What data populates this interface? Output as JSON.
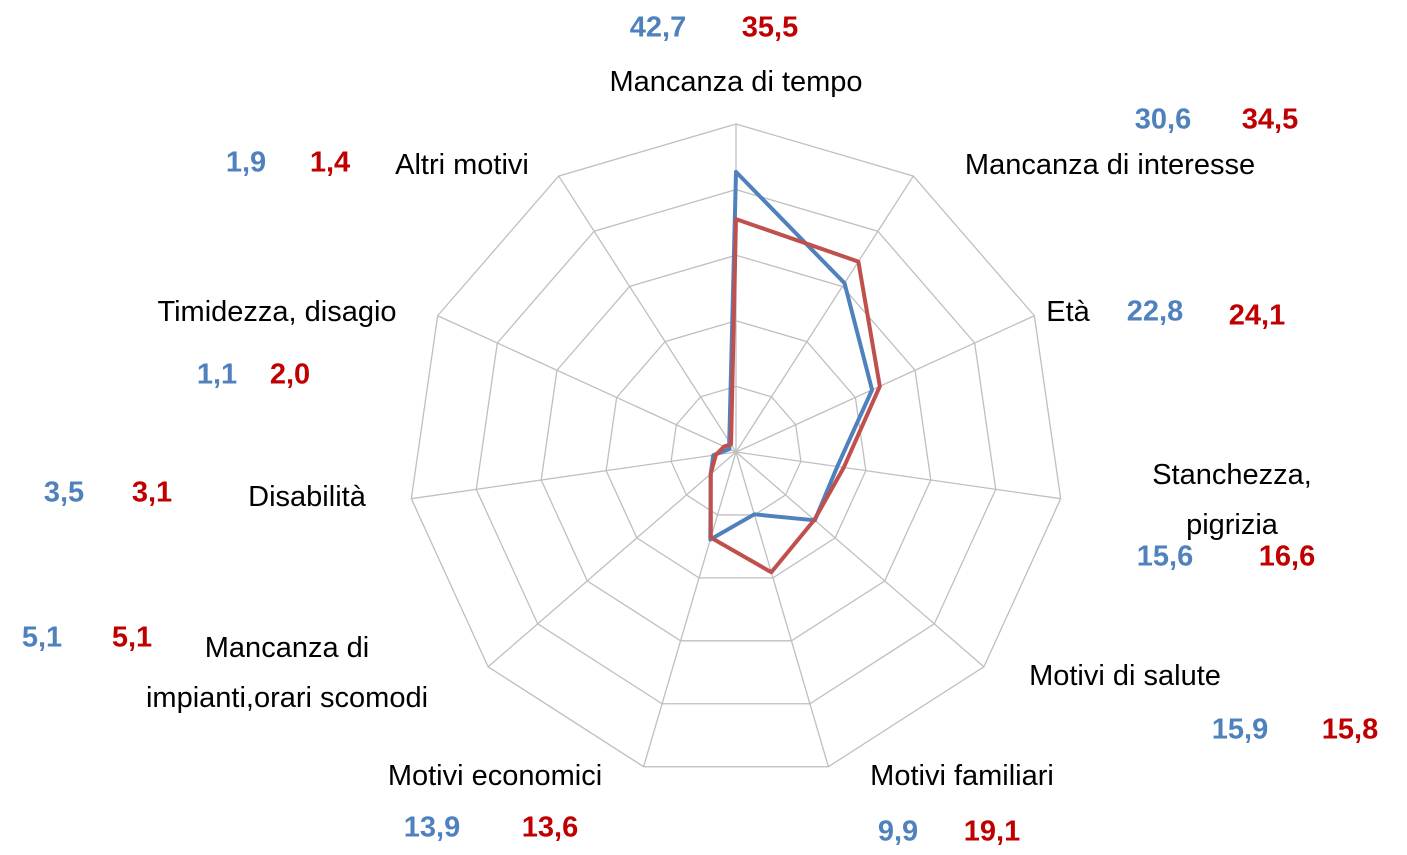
{
  "chart_data": {
    "type": "radar",
    "categories": [
      "Mancanza di tempo",
      "Mancanza di interesse",
      "Età",
      "Stanchezza, pigrizia",
      "Motivi di salute",
      "Motivi familiari",
      "Motivi economici",
      "Mancanza di\nimpianti,orari scomodi",
      "Disabilità",
      "Timidezza, disagio",
      "Altri motivi"
    ],
    "series": [
      {
        "color": "#4f81bd",
        "values": [
          42.7,
          30.6,
          22.8,
          15.6,
          15.9,
          9.9,
          13.9,
          5.1,
          3.5,
          1.1,
          1.9
        ],
        "value_labels": [
          "42,7",
          "30,6",
          "22,8",
          "15,6",
          "15,9",
          "9,9",
          "13,9",
          "5,1",
          "3,5",
          "1,1",
          "1,9"
        ]
      },
      {
        "color": "#c0504d",
        "values": [
          35.5,
          34.5,
          24.1,
          16.6,
          15.8,
          19.1,
          13.6,
          5.1,
          3.1,
          2.0,
          1.4
        ],
        "value_labels": [
          "35,5",
          "34,5",
          "24,1",
          "16,6",
          "15,8",
          "19,1",
          "13,6",
          "5,1",
          "3,1",
          "2,0",
          "1,4"
        ]
      }
    ],
    "ylim": [
      0,
      50
    ],
    "yticks": [
      0,
      10,
      20,
      30,
      40,
      50
    ],
    "grid": true
  }
}
